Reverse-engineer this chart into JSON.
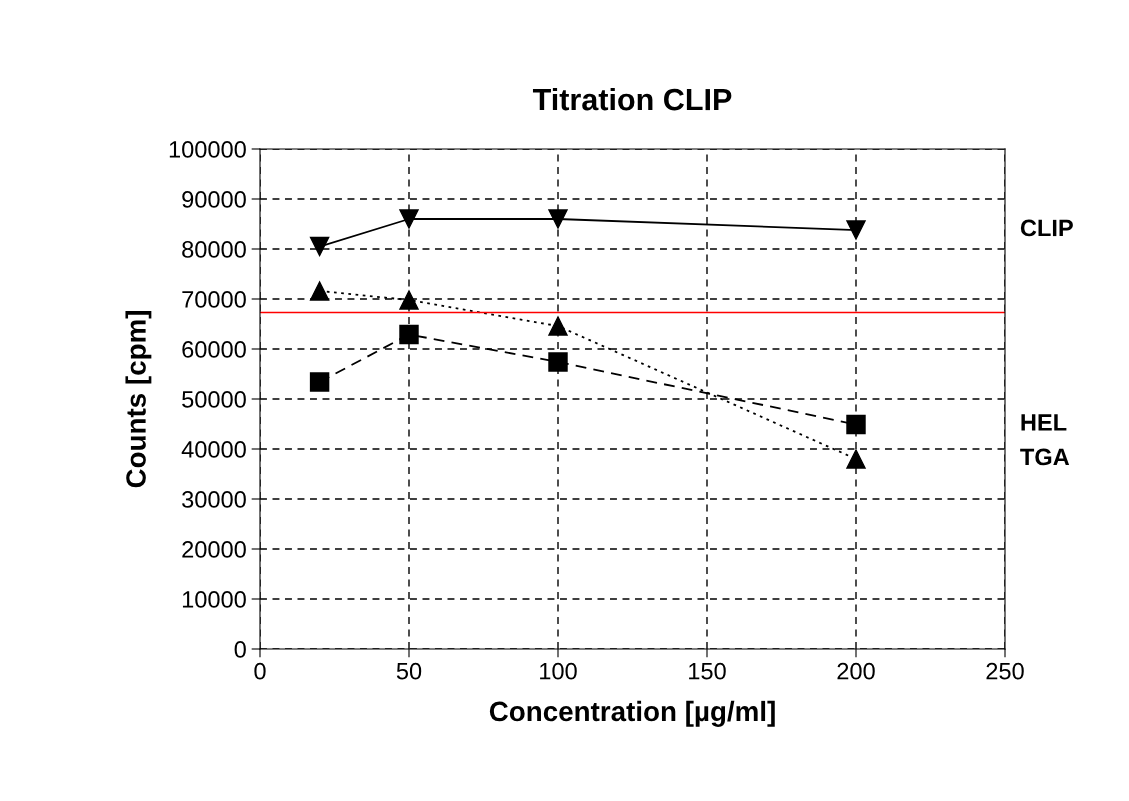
{
  "chart_data": {
    "type": "line",
    "title": "Titration CLIP",
    "xlabel": "Concentration [µg/ml]",
    "ylabel": "Counts [cpm]",
    "x": [
      20,
      50,
      100,
      200
    ],
    "series": [
      {
        "name": "CLIP",
        "color": "#000000",
        "values": [
          80500,
          86000,
          86000,
          83800
        ],
        "marker": "triangle_down",
        "line_style": "solid"
      },
      {
        "name": "HEL",
        "color": "#000000",
        "values": [
          53400,
          62900,
          57400,
          44900
        ],
        "marker": "square",
        "line_style": "dashed"
      },
      {
        "name": "TGA",
        "color": "#000000",
        "values": [
          71600,
          69800,
          64600,
          38000
        ],
        "marker": "triangle",
        "line_style": "dotted"
      }
    ],
    "ref_lines": [
      {
        "axis": "y",
        "value": 67300,
        "color": "#ff0000"
      }
    ],
    "xlim": [
      0,
      250
    ],
    "xticks": [
      0,
      50,
      100,
      150,
      200,
      250
    ],
    "ylim": [
      0,
      100000
    ],
    "yticks": [
      0,
      10000,
      20000,
      30000,
      40000,
      50000,
      60000,
      70000,
      80000,
      90000,
      100000
    ],
    "grid": true,
    "legend": false
  }
}
